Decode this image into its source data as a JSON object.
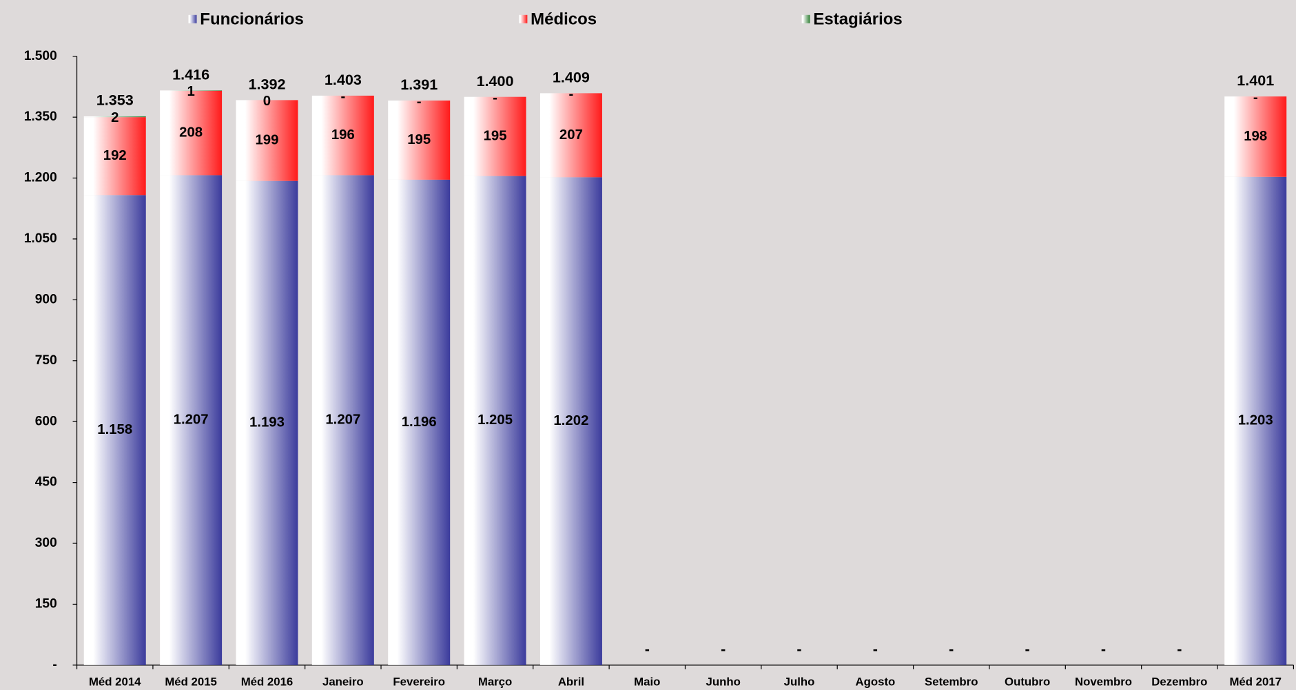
{
  "chart_data": {
    "type": "stacked-bar",
    "categories": [
      "Méd 2014",
      "Méd 2015",
      "Méd 2016",
      "Janeiro",
      "Fevereiro",
      "Março",
      "Abril",
      "Maio",
      "Junho",
      "Julho",
      "Agosto",
      "Setembro",
      "Outubro",
      "Novembro",
      "Dezembro",
      "Méd 2017"
    ],
    "series": [
      {
        "name": "Funcionários",
        "color": "#3b3b9c",
        "values": [
          1158,
          1207,
          1193,
          1207,
          1196,
          1205,
          1202,
          null,
          null,
          null,
          null,
          null,
          null,
          null,
          null,
          1203
        ],
        "value_labels": [
          "1.158",
          "1.207",
          "1.193",
          "1.207",
          "1.196",
          "1.205",
          "1.202",
          null,
          null,
          null,
          null,
          null,
          null,
          null,
          null,
          "1.203"
        ]
      },
      {
        "name": "Médicos",
        "color": "#ff1a1a",
        "values": [
          192,
          208,
          199,
          196,
          195,
          195,
          207,
          null,
          null,
          null,
          null,
          null,
          null,
          null,
          null,
          198
        ]
      },
      {
        "name": "Estagiários",
        "color": "#2e7d32",
        "values": [
          2,
          1,
          0,
          0,
          0,
          0,
          0,
          null,
          null,
          null,
          null,
          null,
          null,
          null,
          null,
          0
        ],
        "value_labels": [
          "2",
          "1",
          "0",
          "-",
          "-",
          "-",
          "-",
          null,
          null,
          null,
          null,
          null,
          null,
          null,
          null,
          "-"
        ]
      }
    ],
    "totals": {
      "values": [
        1353,
        1416,
        1392,
        1403,
        1391,
        1400,
        1409,
        0,
        0,
        0,
        0,
        0,
        0,
        0,
        0,
        1401
      ],
      "value_labels": [
        "1.353",
        "1.416",
        "1.392",
        "1.403",
        "1.391",
        "1.400",
        "1.409",
        "-",
        "-",
        "-",
        "-",
        "-",
        "-",
        "-",
        "-",
        "1.401"
      ]
    },
    "ylim": [
      0,
      1500
    ],
    "yticks": [
      {
        "value": 0,
        "label": "-"
      },
      150,
      300,
      450,
      600,
      750,
      900,
      {
        "value": 1050,
        "label": "1.050"
      },
      {
        "value": 1200,
        "label": "1.200"
      },
      {
        "value": 1350,
        "label": "1.350"
      },
      {
        "value": 1500,
        "label": "1.500"
      }
    ],
    "grid": false,
    "legend": "top"
  }
}
